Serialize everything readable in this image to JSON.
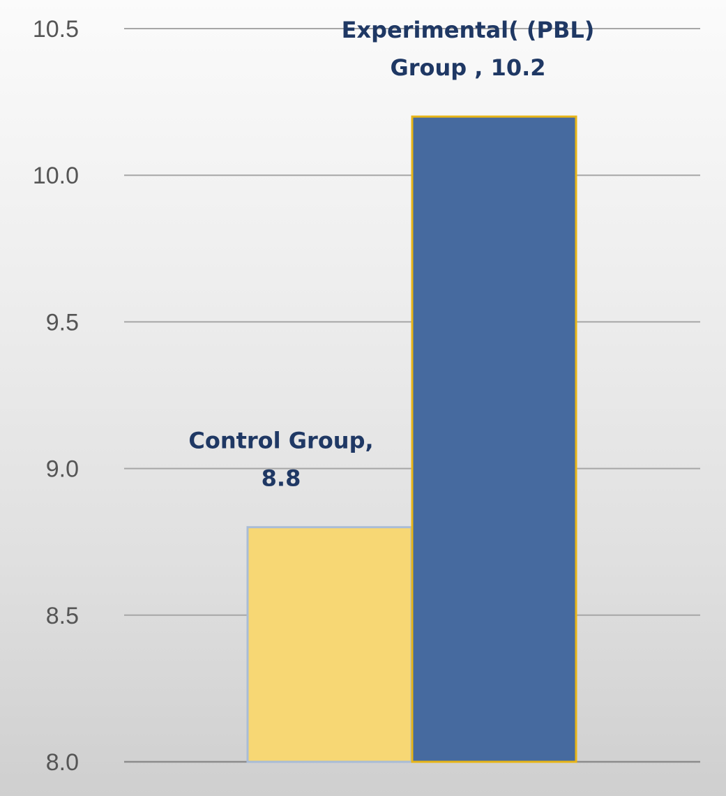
{
  "chart_data": {
    "type": "bar",
    "title": "",
    "xlabel": "",
    "ylabel": "",
    "ylim": [
      8.0,
      10.5
    ],
    "yticks": [
      "8.0",
      "8.5",
      "9.0",
      "9.5",
      "10.0",
      "10.5"
    ],
    "grid": true,
    "legend": "none",
    "series": [
      {
        "values": [
          8.8,
          10.2
        ],
        "colors": [
          "#f7d774",
          "#466a9f"
        ],
        "edge_colors": [
          "#a9bcd6",
          "#e8b517"
        ]
      }
    ],
    "data_labels": [
      [
        "Control Group,",
        "8.8"
      ],
      [
        "Experimental( (PBL)",
        "Group , 10.2"
      ]
    ]
  }
}
